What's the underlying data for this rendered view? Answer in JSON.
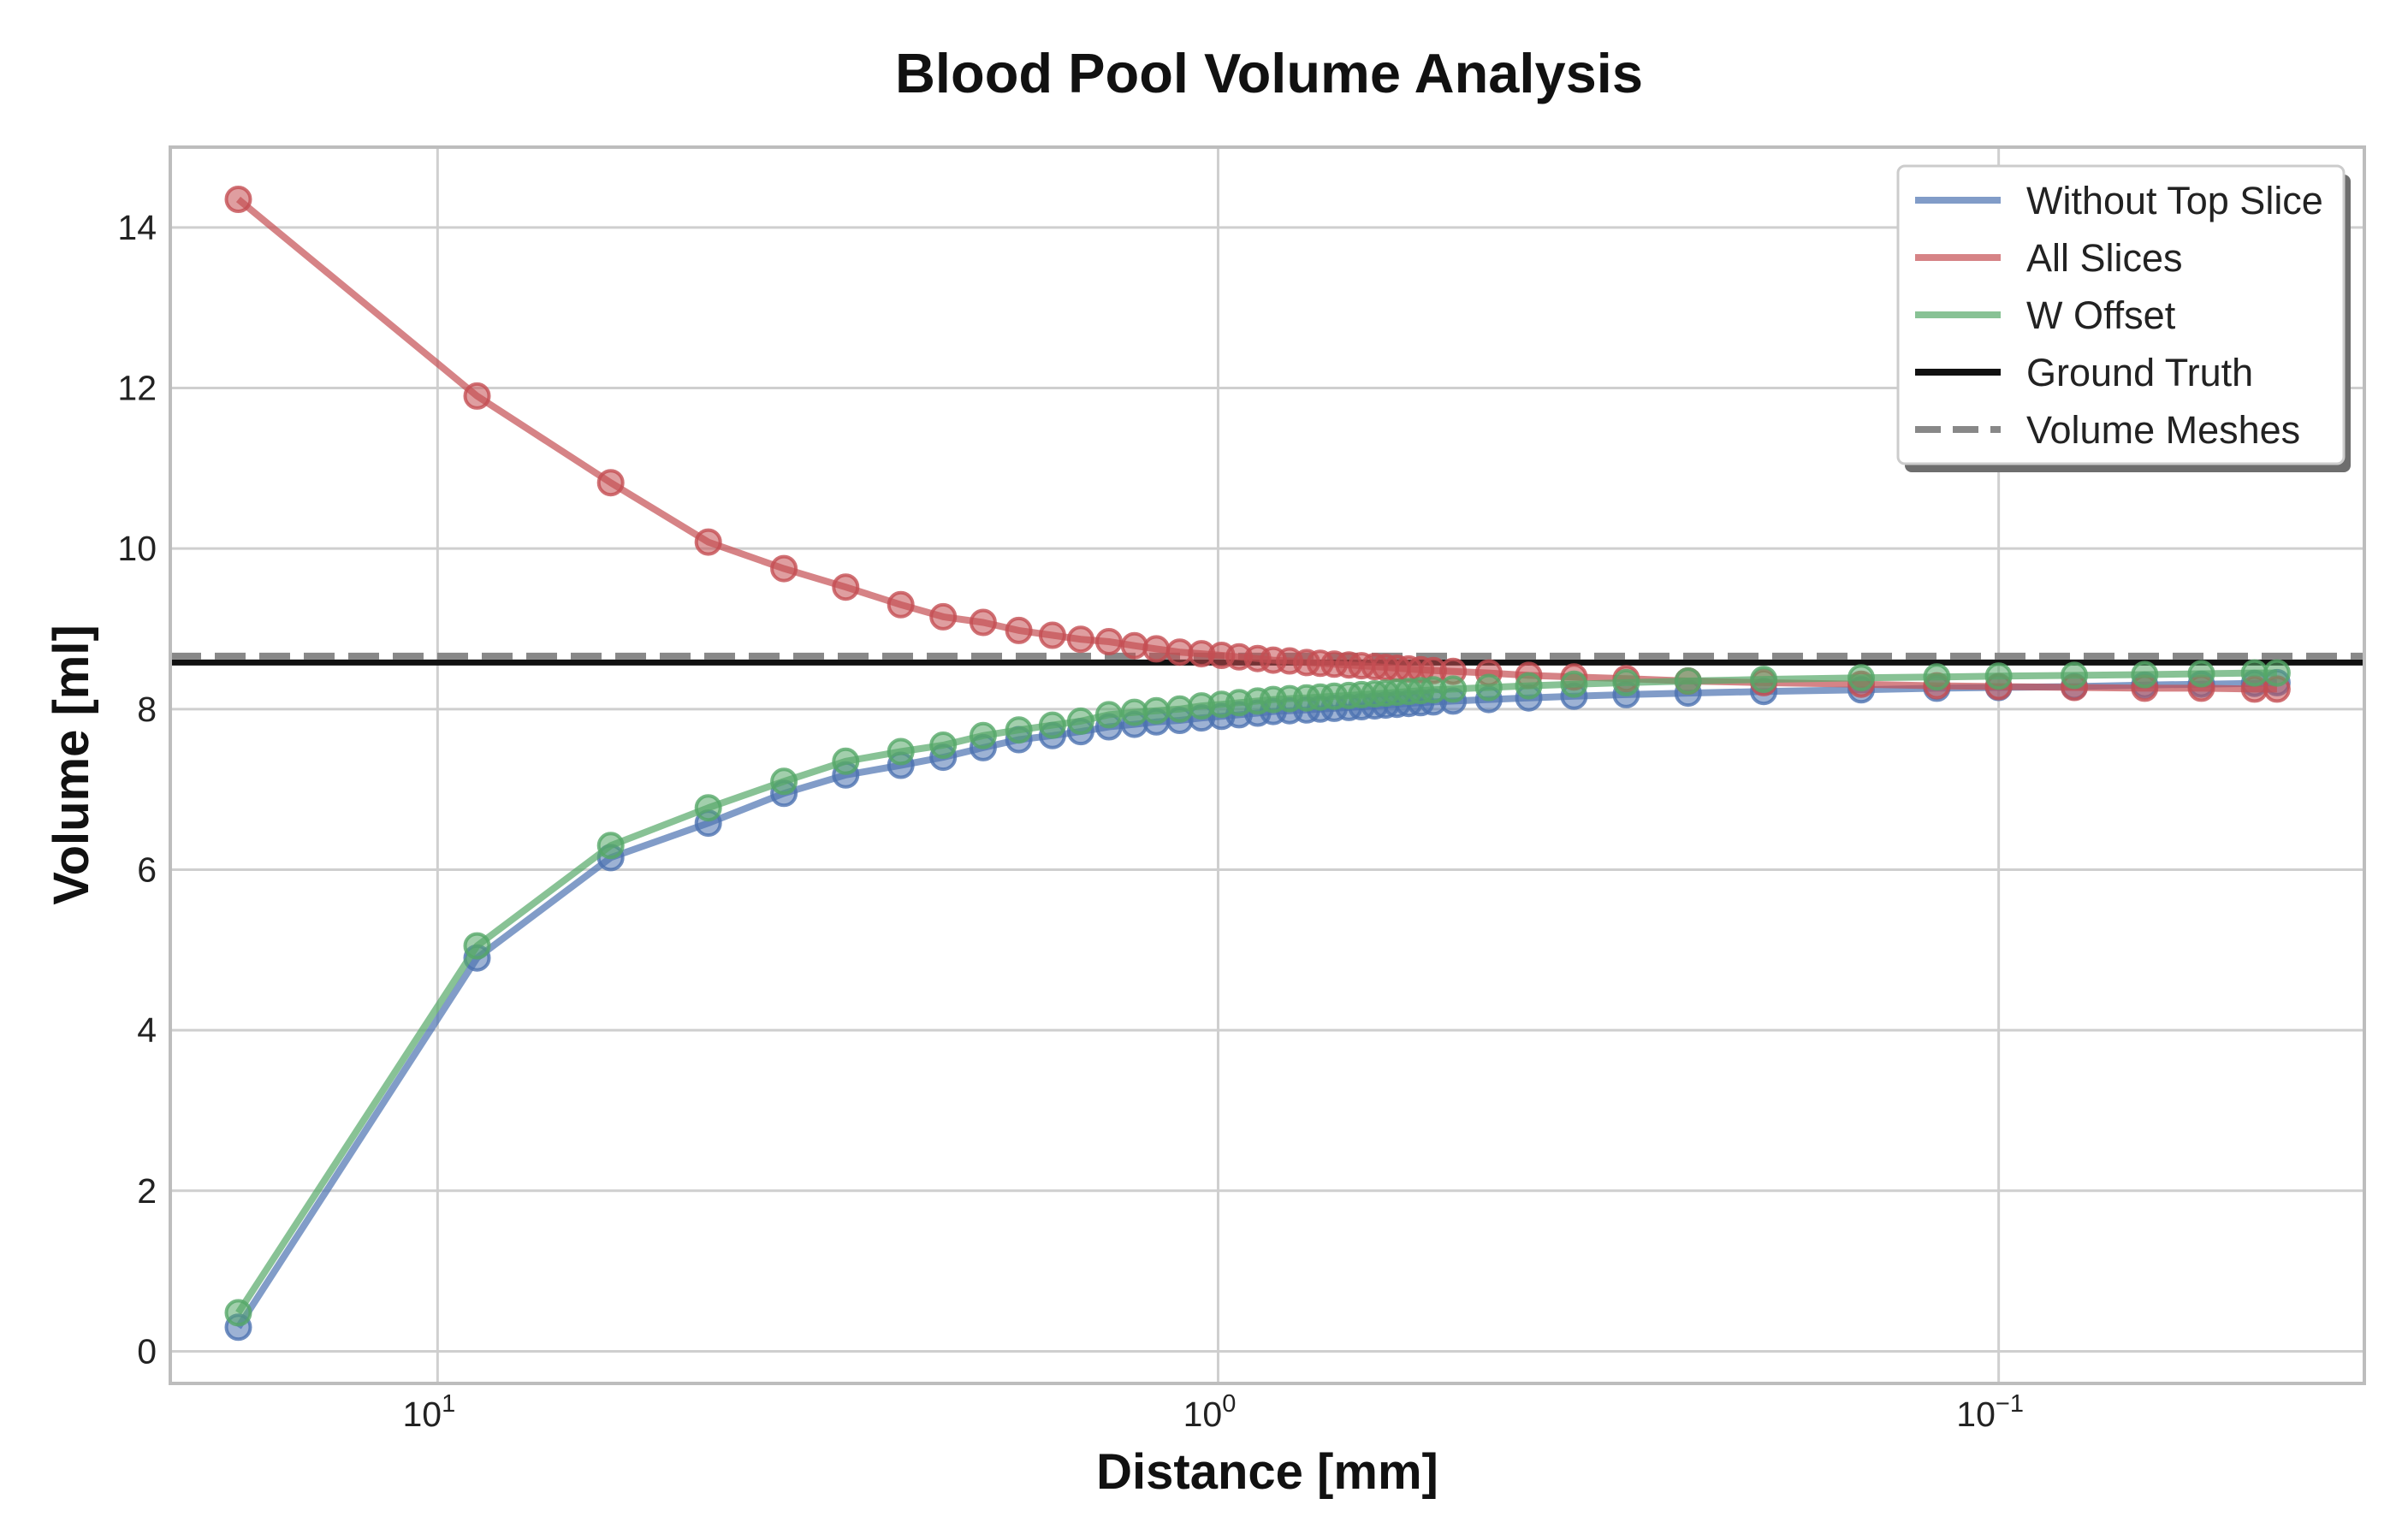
{
  "chart_data": {
    "type": "line",
    "title": "Blood Pool Volume Analysis",
    "xlabel": "Distance [mm]",
    "ylabel": "Volume [ml]",
    "x_scale": "log",
    "x_inverted": true,
    "xlim": [
      22,
      0.034
    ],
    "ylim": [
      -0.4,
      15.0
    ],
    "grid": true,
    "legend_position": "top-right",
    "x_ticks": [
      {
        "value": 10,
        "base": "10",
        "exp": "1"
      },
      {
        "value": 1,
        "base": "10",
        "exp": "0"
      },
      {
        "value": 0.1,
        "base": "10",
        "exp": "−1"
      }
    ],
    "y_ticks": [
      {
        "value": 0,
        "label": "0"
      },
      {
        "value": 2,
        "label": "2"
      },
      {
        "value": 4,
        "label": "4"
      },
      {
        "value": 6,
        "label": "6"
      },
      {
        "value": 8,
        "label": "8"
      },
      {
        "value": 10,
        "label": "10"
      },
      {
        "value": 12,
        "label": "12"
      },
      {
        "value": 14,
        "label": "14"
      }
    ],
    "x": [
      18.0,
      8.9,
      6.0,
      4.5,
      3.6,
      3.0,
      2.55,
      2.25,
      2.0,
      1.8,
      1.63,
      1.5,
      1.38,
      1.28,
      1.2,
      1.12,
      1.05,
      0.99,
      0.94,
      0.89,
      0.85,
      0.81,
      0.77,
      0.74,
      0.71,
      0.68,
      0.655,
      0.63,
      0.61,
      0.59,
      0.57,
      0.55,
      0.53,
      0.5,
      0.45,
      0.4,
      0.35,
      0.3,
      0.25,
      0.2,
      0.15,
      0.12,
      0.1,
      0.08,
      0.065,
      0.055,
      0.047,
      0.044
    ],
    "series": [
      {
        "name": "Without Top Slice",
        "color": "#4c72b0",
        "values": [
          0.3,
          4.9,
          6.15,
          6.58,
          6.95,
          7.18,
          7.3,
          7.4,
          7.52,
          7.62,
          7.67,
          7.72,
          7.78,
          7.81,
          7.84,
          7.86,
          7.89,
          7.91,
          7.93,
          7.95,
          7.97,
          7.98,
          7.99,
          8.0,
          8.01,
          8.02,
          8.03,
          8.04,
          8.05,
          8.06,
          8.07,
          8.08,
          8.09,
          8.1,
          8.12,
          8.14,
          8.16,
          8.18,
          8.2,
          8.22,
          8.24,
          8.26,
          8.27,
          8.28,
          8.3,
          8.31,
          8.32,
          8.33
        ]
      },
      {
        "name": "All Slices",
        "color": "#c44e52",
        "values": [
          14.35,
          11.9,
          10.82,
          10.08,
          9.75,
          9.52,
          9.3,
          9.15,
          9.08,
          8.98,
          8.92,
          8.87,
          8.84,
          8.79,
          8.75,
          8.71,
          8.69,
          8.67,
          8.65,
          8.63,
          8.61,
          8.6,
          8.58,
          8.57,
          8.56,
          8.55,
          8.54,
          8.53,
          8.52,
          8.51,
          8.5,
          8.49,
          8.48,
          8.47,
          8.45,
          8.42,
          8.4,
          8.38,
          8.35,
          8.33,
          8.31,
          8.29,
          8.28,
          8.27,
          8.26,
          8.26,
          8.25,
          8.25
        ]
      },
      {
        "name": "W Offset",
        "color": "#55a868",
        "values": [
          0.48,
          5.05,
          6.3,
          6.77,
          7.1,
          7.35,
          7.47,
          7.55,
          7.67,
          7.74,
          7.8,
          7.85,
          7.93,
          7.96,
          7.98,
          8.0,
          8.04,
          8.06,
          8.08,
          8.1,
          8.12,
          8.13,
          8.14,
          8.15,
          8.16,
          8.17,
          8.18,
          8.19,
          8.2,
          8.21,
          8.22,
          8.23,
          8.24,
          8.25,
          8.27,
          8.29,
          8.31,
          8.33,
          8.35,
          8.37,
          8.39,
          8.4,
          8.41,
          8.42,
          8.43,
          8.44,
          8.45,
          8.45
        ]
      }
    ],
    "reference_lines": [
      {
        "name": "Ground Truth",
        "value": 8.58,
        "color": "#111111",
        "style": "solid"
      },
      {
        "name": "Volume Meshes",
        "value": 8.66,
        "color": "#888888",
        "style": "dashed"
      }
    ],
    "legend": [
      "Without Top Slice",
      "All Slices",
      "W Offset",
      "Ground Truth",
      "Volume Meshes"
    ]
  }
}
